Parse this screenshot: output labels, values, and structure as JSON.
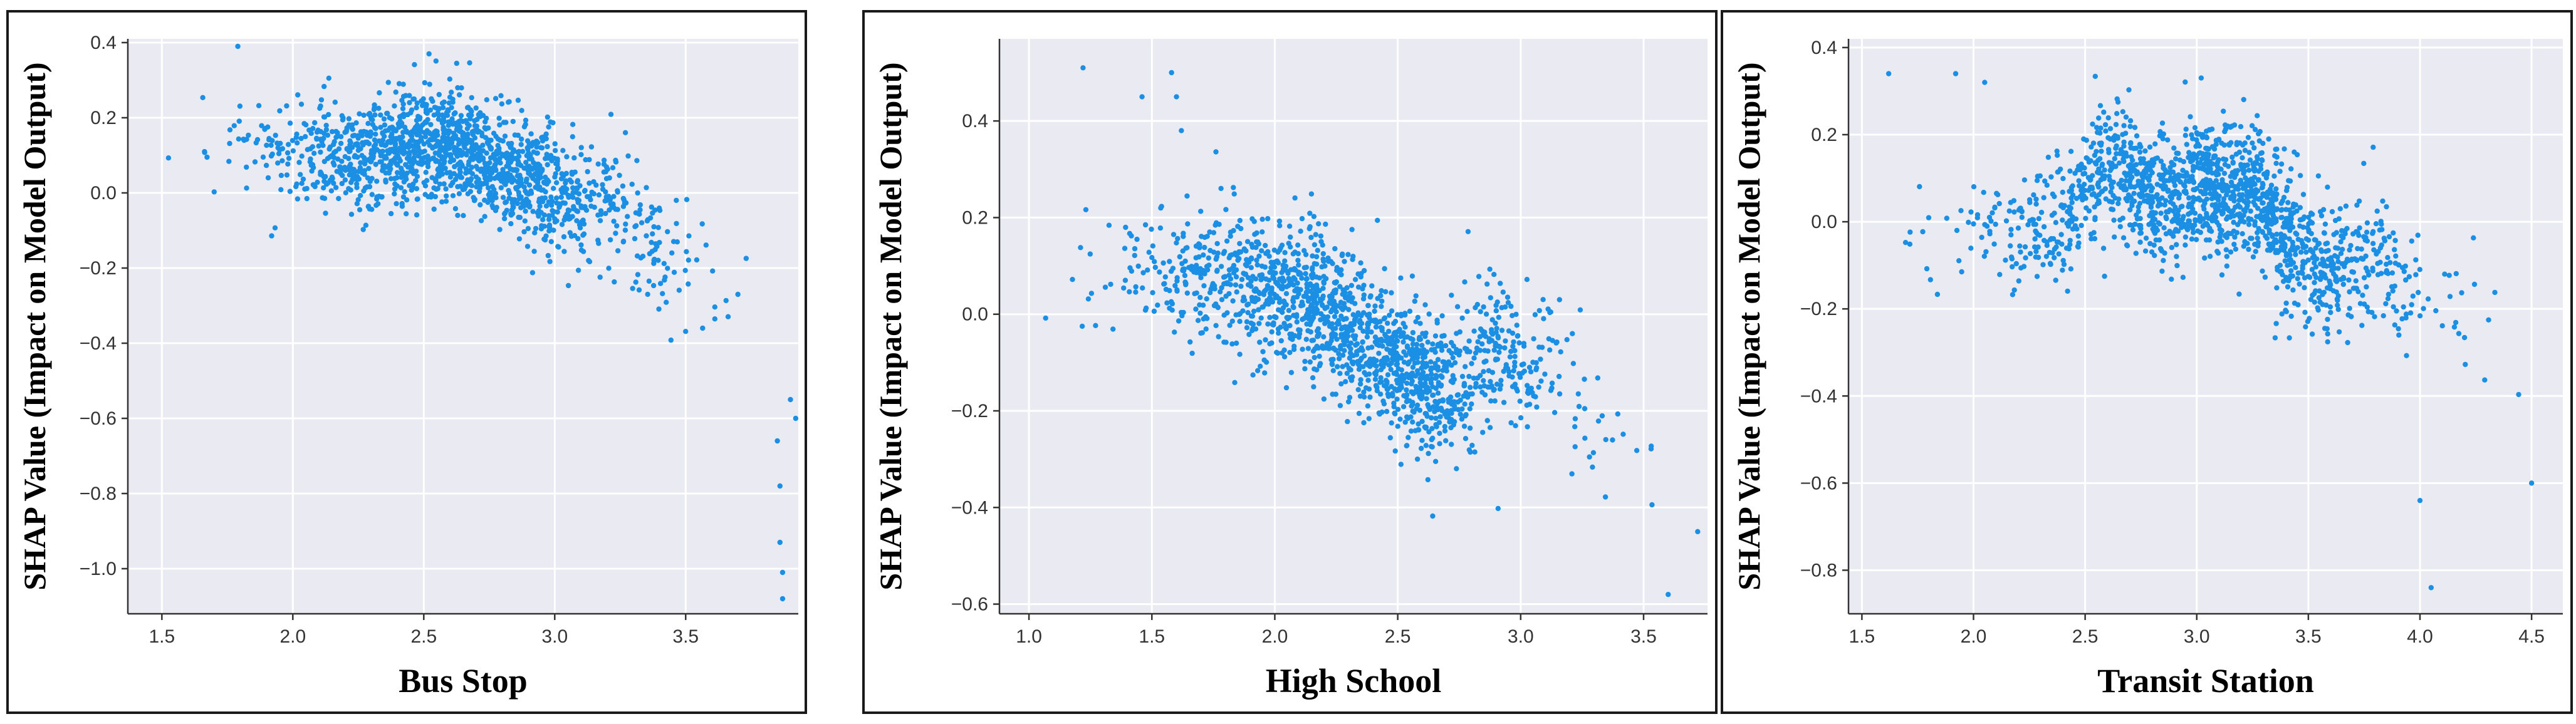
{
  "chart_data": [
    {
      "type": "scatter",
      "xlabel": "Bus Stop",
      "ylabel": "SHAP Value (Impact on Model Output)",
      "xlim": [
        1.37,
        3.93
      ],
      "ylim": [
        -1.12,
        0.41
      ],
      "xticks": [
        "1.5",
        "2.0",
        "2.5",
        "3.0",
        "3.5"
      ],
      "yticks": [
        "0.4",
        "0.2",
        "0.0",
        "−0.2",
        "−0.4",
        "−0.6",
        "−0.8",
        "−1.0"
      ],
      "grid": true,
      "point_color": "#1a8fe3",
      "background": "#eaeaf2",
      "trend": {
        "x": [
          1.37,
          1.6,
          1.8,
          2.0,
          2.2,
          2.4,
          2.5,
          2.6,
          2.7,
          2.8,
          2.9,
          3.0,
          3.1,
          3.2,
          3.3,
          3.4,
          3.5,
          3.6,
          3.7,
          3.8,
          3.93
        ],
        "y": [
          0.08,
          0.12,
          0.13,
          0.11,
          0.1,
          0.12,
          0.14,
          0.13,
          0.1,
          0.06,
          0.03,
          0.0,
          -0.03,
          -0.02,
          -0.08,
          -0.15,
          -0.22,
          -0.28,
          -0.34,
          -0.4,
          -0.45
        ]
      },
      "outliers": [
        [
          3.85,
          -0.66
        ],
        [
          3.86,
          -0.78
        ],
        [
          3.86,
          -0.93
        ],
        [
          3.87,
          -1.01
        ],
        [
          3.87,
          -1.08
        ],
        [
          3.9,
          -0.55
        ],
        [
          3.92,
          -0.6
        ],
        [
          1.79,
          0.39
        ],
        [
          2.52,
          0.37
        ]
      ]
    },
    {
      "type": "scatter",
      "xlabel": "High School",
      "ylabel": "SHAP Value (Impact on Model Output)",
      "xlim": [
        0.88,
        3.76
      ],
      "ylim": [
        -0.62,
        0.57
      ],
      "xticks": [
        "1.0",
        "1.5",
        "2.0",
        "2.5",
        "3.0",
        "3.5"
      ],
      "yticks": [
        "0.4",
        "0.2",
        "0.0",
        "−0.2",
        "−0.4",
        "−0.6"
      ],
      "grid": true,
      "point_color": "#1a8fe3",
      "background": "#eaeaf2",
      "trend": {
        "x": [
          0.88,
          1.0,
          1.2,
          1.4,
          1.6,
          1.8,
          2.0,
          2.2,
          2.4,
          2.6,
          2.75,
          2.9,
          3.1,
          3.3,
          3.5,
          3.6,
          3.76
        ],
        "y": [
          -0.08,
          -0.02,
          0.06,
          0.09,
          0.09,
          0.07,
          0.05,
          0.02,
          -0.07,
          -0.14,
          -0.14,
          -0.08,
          -0.09,
          -0.2,
          -0.31,
          -0.33,
          -0.35
        ]
      },
      "outliers": [
        [
          1.22,
          0.51
        ],
        [
          1.58,
          0.5
        ],
        [
          1.6,
          0.45
        ],
        [
          1.46,
          0.45
        ],
        [
          1.62,
          0.38
        ],
        [
          3.6,
          -0.58
        ],
        [
          3.72,
          -0.45
        ]
      ]
    },
    {
      "type": "scatter",
      "xlabel": "Transit Station",
      "ylabel": "SHAP Value (Impact on Model Output)",
      "xlim": [
        1.44,
        4.64
      ],
      "ylim": [
        -0.9,
        0.42
      ],
      "xticks": [
        "1.5",
        "2.0",
        "2.5",
        "3.0",
        "3.5",
        "4.0",
        "4.5"
      ],
      "yticks": [
        "0.4",
        "0.2",
        "0.0",
        "−0.2",
        "−0.4",
        "−0.6",
        "−0.8"
      ],
      "grid": true,
      "point_color": "#1a8fe3",
      "background": "#eaeaf2",
      "trend": {
        "x": [
          1.44,
          1.6,
          1.8,
          2.0,
          2.2,
          2.4,
          2.5,
          2.6,
          2.7,
          2.8,
          2.9,
          3.0,
          3.1,
          3.2,
          3.3,
          3.4,
          3.5,
          3.6,
          3.8,
          4.0,
          4.2,
          4.4,
          4.64
        ],
        "y": [
          -0.12,
          -0.06,
          0.0,
          -0.02,
          -0.03,
          0.0,
          0.08,
          0.1,
          0.09,
          0.06,
          0.04,
          0.09,
          0.08,
          0.07,
          0.05,
          -0.05,
          -0.08,
          -0.1,
          -0.08,
          -0.15,
          -0.2,
          -0.24,
          -0.28
        ]
      },
      "outliers": [
        [
          1.62,
          0.34
        ],
        [
          1.92,
          0.34
        ],
        [
          2.05,
          0.32
        ],
        [
          3.02,
          0.33
        ],
        [
          4.05,
          -0.84
        ],
        [
          4.0,
          -0.64
        ],
        [
          4.5,
          -0.6
        ]
      ]
    }
  ]
}
